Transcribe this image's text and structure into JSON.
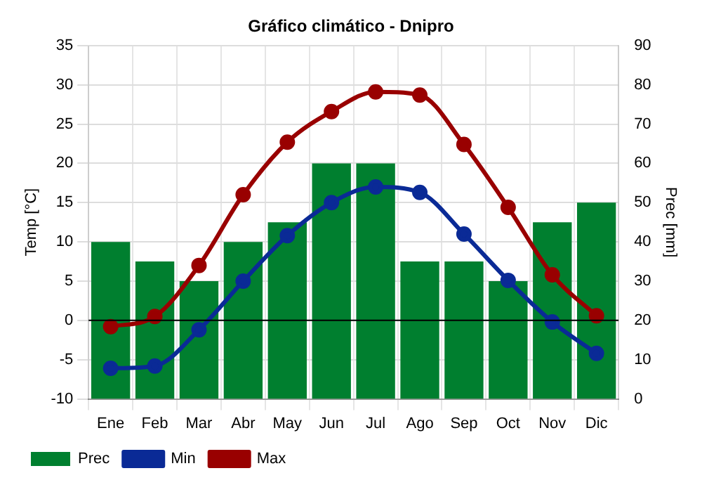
{
  "chart_data": {
    "type": "bar",
    "title": "Gráfico climático - Dnipro",
    "ylabel": "Temp [°C]",
    "y2label": "Prec [mm]",
    "categories": [
      "Ene",
      "Feb",
      "Mar",
      "Abr",
      "May",
      "Jun",
      "Jul",
      "Ago",
      "Sep",
      "Oct",
      "Nov",
      "Dic"
    ],
    "series": [
      {
        "name": "Prec",
        "axis": "y2",
        "color": "#007f2f",
        "values": [
          40,
          35,
          30,
          40,
          45,
          60,
          60,
          35,
          35,
          30,
          45,
          50
        ]
      },
      {
        "name": "Min",
        "type": "line",
        "color": "#0a2a96",
        "values": [
          -6.1,
          -5.8,
          -1.2,
          5,
          10.8,
          15,
          17,
          16.3,
          11,
          5.1,
          -0.2,
          -4.2
        ]
      },
      {
        "name": "Max",
        "type": "line",
        "color": "#990000",
        "values": [
          -0.8,
          0.5,
          7,
          16,
          22.7,
          26.6,
          29.1,
          28.7,
          22.4,
          14.4,
          5.8,
          0.6
        ]
      }
    ],
    "ylim": [
      -10,
      35
    ],
    "yticks": [
      -10,
      -5,
      0,
      5,
      10,
      15,
      20,
      25,
      30,
      35
    ],
    "y2lim": [
      0,
      90
    ],
    "y2ticks": [
      0,
      10,
      20,
      30,
      40,
      50,
      60,
      70,
      80,
      90
    ],
    "ref_lines": [
      {
        "axis": "y",
        "value": 0,
        "color": "#000000"
      }
    ],
    "grid": true,
    "legend": "bottom",
    "marker": "circle",
    "line_style": "solid"
  }
}
